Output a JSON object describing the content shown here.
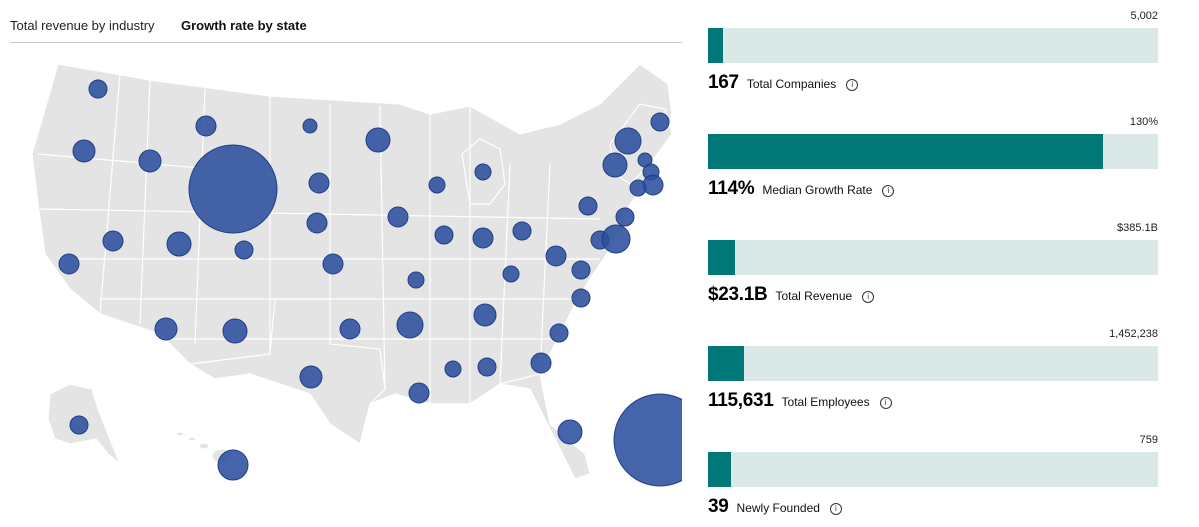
{
  "tabs": [
    {
      "label": "Total revenue by industry",
      "active": false
    },
    {
      "label": "Growth rate by state",
      "active": true
    }
  ],
  "colors": {
    "accent": "#017777",
    "track": "#dbe8e8",
    "bubble": "#2b4f9e",
    "land": "#e4e4e4"
  },
  "stats": [
    {
      "value": "167",
      "label": "Total Companies",
      "max_label": "5,002",
      "fraction": 0.033,
      "info_icon": "info-icon"
    },
    {
      "value": "114%",
      "label": "Median Growth Rate",
      "max_label": "130%",
      "fraction": 0.877,
      "info_icon": "info-icon"
    },
    {
      "value": "$23.1B",
      "label": "Total Revenue",
      "max_label": "$385.1B",
      "fraction": 0.06,
      "info_icon": "info-icon"
    },
    {
      "value": "115,631",
      "label": "Total Employees",
      "max_label": "1,452,238",
      "fraction": 0.08,
      "info_icon": "info-icon"
    },
    {
      "value": "39",
      "label": "Newly Founded",
      "max_label": "759",
      "fraction": 0.051,
      "info_icon": "info-icon"
    }
  ]
}
